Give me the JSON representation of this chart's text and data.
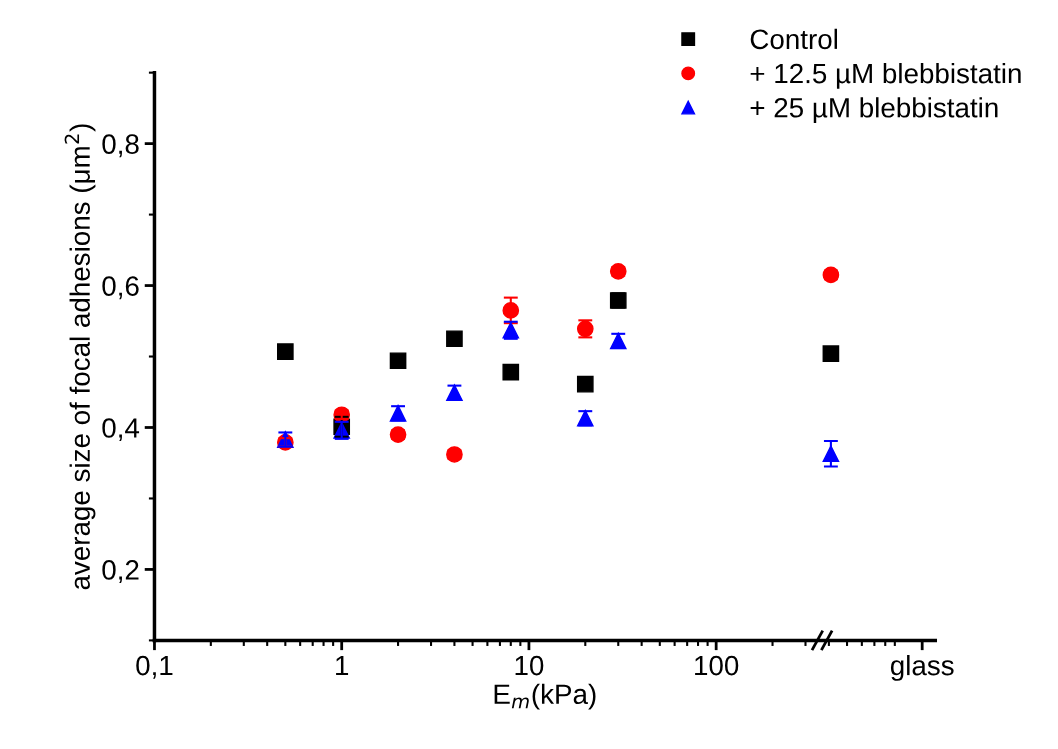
{
  "chart_data": {
    "type": "scatter",
    "xlabel": "E$_{m}$(kPa)",
    "ylabel": "average size of focal adhesions (μm$^{2}$)",
    "x": [
      0.5,
      1,
      2,
      4,
      8,
      20,
      30,
      410
    ],
    "xlim": [
      0.1,
      1480
    ],
    "log": "x",
    "xticks": [
      {
        "value": 0.1,
        "label": "0,1"
      },
      1,
      10,
      100,
      {
        "value": 1260,
        "label": "glass"
      }
    ],
    "ylim": [
      0.1,
      0.9
    ],
    "yticks": [
      {
        "value": 0.2,
        "label": "0,2"
      },
      {
        "value": 0.4,
        "label": "0,4"
      },
      {
        "value": 0.6,
        "label": "0,6"
      },
      {
        "value": 0.8,
        "label": "0,8"
      }
    ],
    "grid": false,
    "legend": "top right",
    "series": [
      {
        "name": "Control",
        "color": "#000000",
        "marker": "square",
        "values": [
          0.507,
          0.401,
          0.494,
          0.525,
          0.478,
          0.461,
          0.579,
          0.504
        ],
        "errors": [
          0.008,
          0.014,
          0.008,
          0.006,
          0.008,
          0.006,
          0.01,
          0.008
        ]
      },
      {
        "name": "+ 12.5 µM blebbistatin",
        "color": "#ff0000",
        "marker": "circle",
        "values": [
          0.379,
          0.418,
          0.39,
          0.362,
          0.565,
          0.539,
          0.62,
          0.615
        ],
        "errors": [
          0.006,
          0.006,
          0.006,
          0.006,
          0.018,
          0.012,
          0.006,
          0.006
        ]
      },
      {
        "name": "+ 25 µM blebbistatin",
        "color": "#0000ff",
        "marker": "triangle",
        "values": [
          0.383,
          0.396,
          0.42,
          0.449,
          0.537,
          0.413,
          0.522,
          0.363
        ],
        "errors": [
          0.01,
          0.012,
          0.01,
          0.01,
          0.012,
          0.01,
          0.01,
          0.018
        ]
      }
    ]
  }
}
